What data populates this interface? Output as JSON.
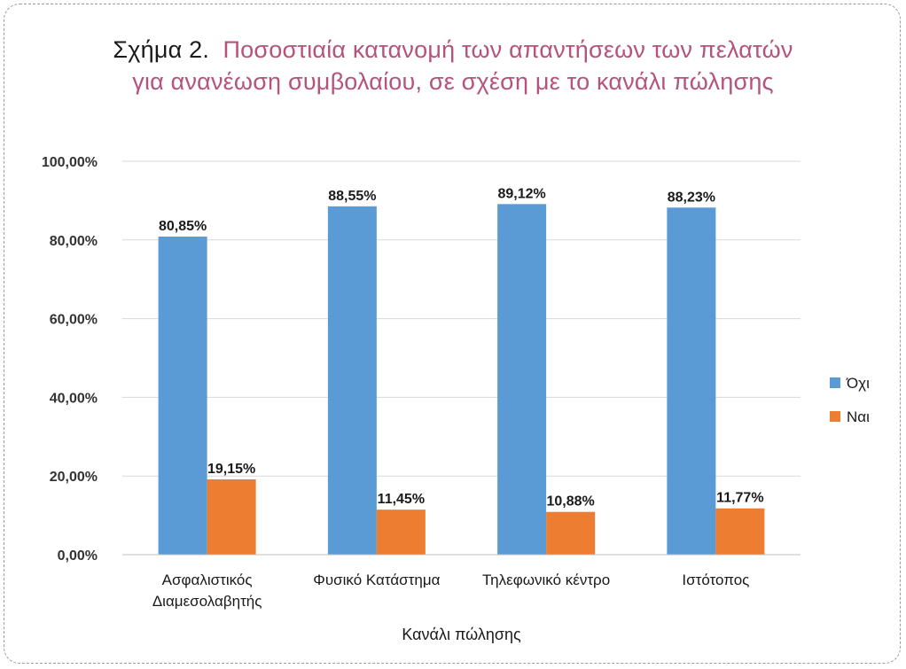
{
  "header": {
    "prefix": "Σχήμα 2.",
    "line1": "Ποσοστιαία κατανομή των απαντήσεων των πελατών",
    "line2": "για ανανέωση συμβολαίου, σε σχέση με το κανάλι πώλησης"
  },
  "colors": {
    "series_ochi": "#5b9bd5",
    "series_nai": "#ed7d31",
    "title": "#b5537d",
    "grid": "#d9d9d9"
  },
  "chart_data": {
    "type": "bar",
    "title": "Σχήμα 2. Ποσοστιαία κατανομή των απαντήσεων των πελατών για ανανέωση συμβολαίου, σε σχέση με το κανάλι πώλησης",
    "xlabel": "Κανάλι πώλησης",
    "ylabel": "",
    "ylim": [
      0,
      100
    ],
    "yticks": [
      {
        "value": 0,
        "label": "0,00%"
      },
      {
        "value": 20,
        "label": "20,00%"
      },
      {
        "value": 40,
        "label": "40,00%"
      },
      {
        "value": 60,
        "label": "60,00%"
      },
      {
        "value": 80,
        "label": "80,00%"
      },
      {
        "value": 100,
        "label": "100,00%"
      }
    ],
    "grid": true,
    "legend_position": "right",
    "categories": [
      [
        "Ασφαλιστικός",
        "Διαμεσολαβητής"
      ],
      [
        "Φυσικό Κατάστημα"
      ],
      [
        "Τηλεφωνικό κέντρο"
      ],
      [
        "Ιστότοπος"
      ]
    ],
    "series": [
      {
        "name": "Όχι",
        "values": [
          80.85,
          88.55,
          89.12,
          88.23
        ],
        "labels": [
          "80,85%",
          "88,55%",
          "89,12%",
          "88,23%"
        ]
      },
      {
        "name": "Ναι",
        "values": [
          19.15,
          11.45,
          10.88,
          11.77
        ],
        "labels": [
          "19,15%",
          "11,45%",
          "10,88%",
          "11,77%"
        ]
      }
    ]
  }
}
